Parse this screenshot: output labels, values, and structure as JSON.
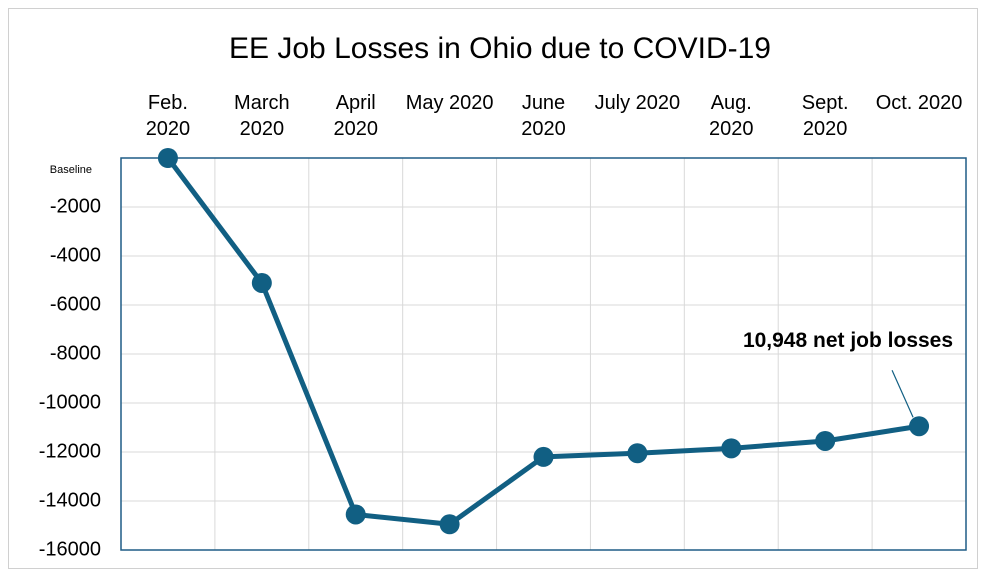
{
  "chart_data": {
    "type": "line",
    "title": "EE Job Losses in Ohio due to COVID-19",
    "categories": [
      "Feb. 2020",
      "March 2020",
      "April 2020",
      "May 2020",
      "June 2020",
      "July 2020",
      "Aug. 2020",
      "Sept. 2020",
      "Oct. 2020"
    ],
    "series": [
      {
        "name": "EE Job Losses",
        "color": "#115f83",
        "values": [
          0,
          -5100,
          -14550,
          -14950,
          -12200,
          -12050,
          -11850,
          -11550,
          -10948
        ]
      }
    ],
    "ylim": [
      -16000,
      0
    ],
    "yticks": [
      {
        "value": 0,
        "label": "Baseline"
      },
      -2000,
      -4000,
      -6000,
      -8000,
      -10000,
      -12000,
      -14000,
      -16000
    ],
    "grid": true,
    "annotation": "10,948 net job losses"
  }
}
